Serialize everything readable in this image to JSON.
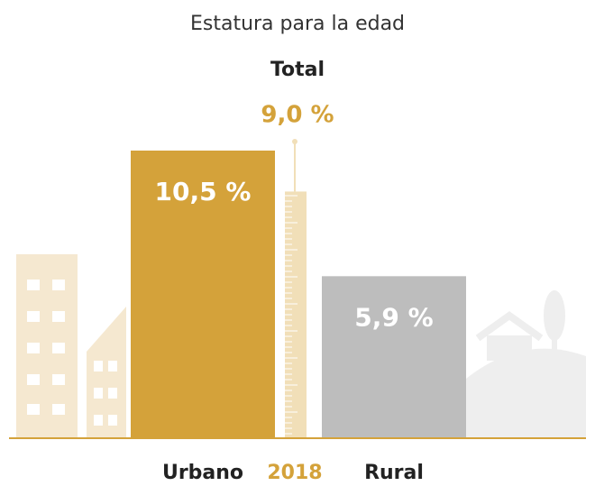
{
  "chart_data": {
    "type": "bar",
    "title": "Estatura para la edad",
    "categories": [
      "Urbano",
      "Rural"
    ],
    "values": [
      10.5,
      5.9
    ],
    "value_labels": [
      "10,5 %",
      "5,9 %"
    ],
    "colors": [
      "#d4a23a",
      "#bdbdbd"
    ],
    "total": {
      "label": "Total",
      "value": 9.0,
      "value_label": "9,0 %",
      "color": "#f1dfb8"
    },
    "year": "2018",
    "year_color": "#d4a23a"
  }
}
